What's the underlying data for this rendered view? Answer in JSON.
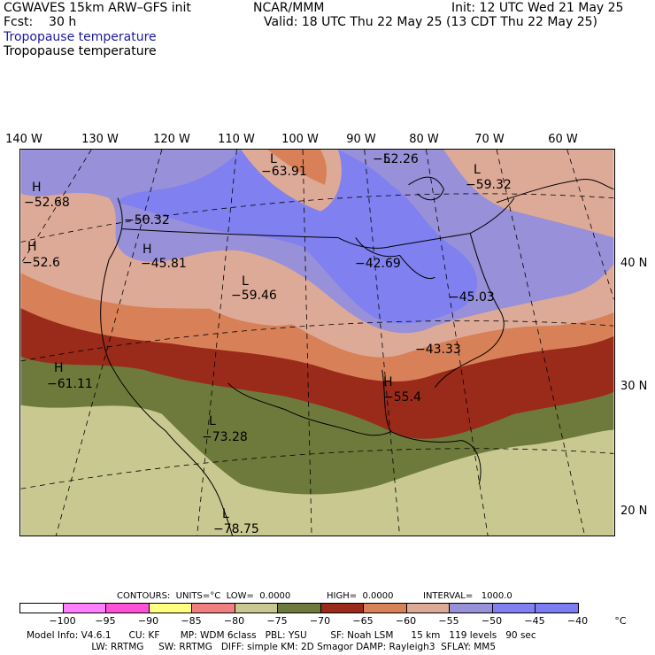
{
  "header": {
    "model": "CGWAVES 15km ARW–GFS init",
    "center": "NCAR/MMM",
    "init": "Init: 12 UTC Wed 21 May 25",
    "fcst": "Fcst:    30 h",
    "valid": "Valid: 18 UTC Thu 22 May 25 (13 CDT Thu 22 May 25)",
    "field_title_1": "Tropopause temperature",
    "field_title_2": "Tropopause temperature"
  },
  "axes": {
    "lon_labels": [
      "140 W",
      "130 W",
      "120 W",
      "110 W",
      "100 W",
      "90 W",
      "80 W",
      "70 W",
      "60 W"
    ],
    "lat_labels": [
      "40 N",
      "30 N",
      "20 N"
    ]
  },
  "map_labels": [
    {
      "hl": "L",
      "value": "−63.91"
    },
    {
      "hl": "L",
      "value": "−52.26"
    },
    {
      "hl": "L",
      "value": "−59.32"
    },
    {
      "hl": "H",
      "value": "−52.68"
    },
    {
      "hl": "",
      "value": "−50.32"
    },
    {
      "hl": "H",
      "value": "−45.81"
    },
    {
      "hl": "H",
      "value": "−52.6"
    },
    {
      "hl": "L",
      "value": "−59.46"
    },
    {
      "hl": "",
      "value": "−42.69"
    },
    {
      "hl": "",
      "value": "−45.03"
    },
    {
      "hl": "",
      "value": "−43.33"
    },
    {
      "hl": "H",
      "value": "−61.11"
    },
    {
      "hl": "H",
      "value": "−55.4"
    },
    {
      "hl": "L",
      "value": "−73.28"
    },
    {
      "hl": "L",
      "value": "−78.75"
    }
  ],
  "contours": {
    "units_label": "CONTOURS:  UNITS=°C  LOW=  0.0000",
    "high_label": "HIGH=  0.0000",
    "interval_label": "INTERVAL=   1000.0"
  },
  "colorbar": {
    "colors": [
      "#ffffff",
      "#ff80ff",
      "#ff50d8",
      "#ffff80",
      "#f08080",
      "#c8c890",
      "#6e7a3c",
      "#9a2a1a",
      "#d88058",
      "#deaa98",
      "#9890d8",
      "#8080f0",
      "#7c7cf2"
    ],
    "labels": [
      "−100",
      "−95",
      "−90",
      "−85",
      "−80",
      "−75",
      "−70",
      "−65",
      "−60",
      "−55",
      "−50",
      "−45",
      "−40",
      "°C"
    ]
  },
  "footer": {
    "line1": "Model Info: V4.6.1      CU: KF       MP: WDM 6class   PBL: YSU        SF: Noah LSM      15 km   119 levels   90 sec",
    "line2": "                      LW: RRTMG     SW: RRTMG   DIFF: simple KM: 2D Smagor DAMP: Rayleigh3  SFLAY: MM5"
  }
}
